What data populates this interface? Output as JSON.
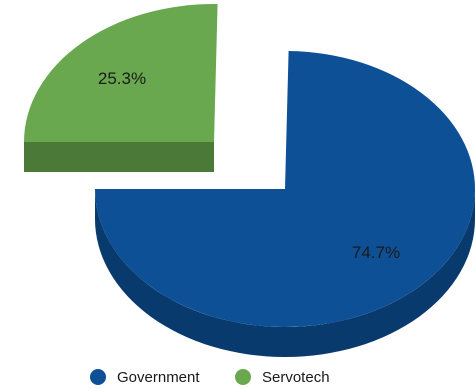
{
  "chart_data": {
    "type": "pie",
    "style": "3d-exploded",
    "title": "",
    "legend_position": "bottom",
    "slices": [
      {
        "name": "Government",
        "value": 74.7,
        "label": "74.7%",
        "color": "#0e5096",
        "side_color": "#093a6e"
      },
      {
        "name": "Servotech",
        "value": 25.3,
        "label": "25.3%",
        "color": "#6aa84f",
        "side_color": "#4b7a38"
      }
    ]
  }
}
